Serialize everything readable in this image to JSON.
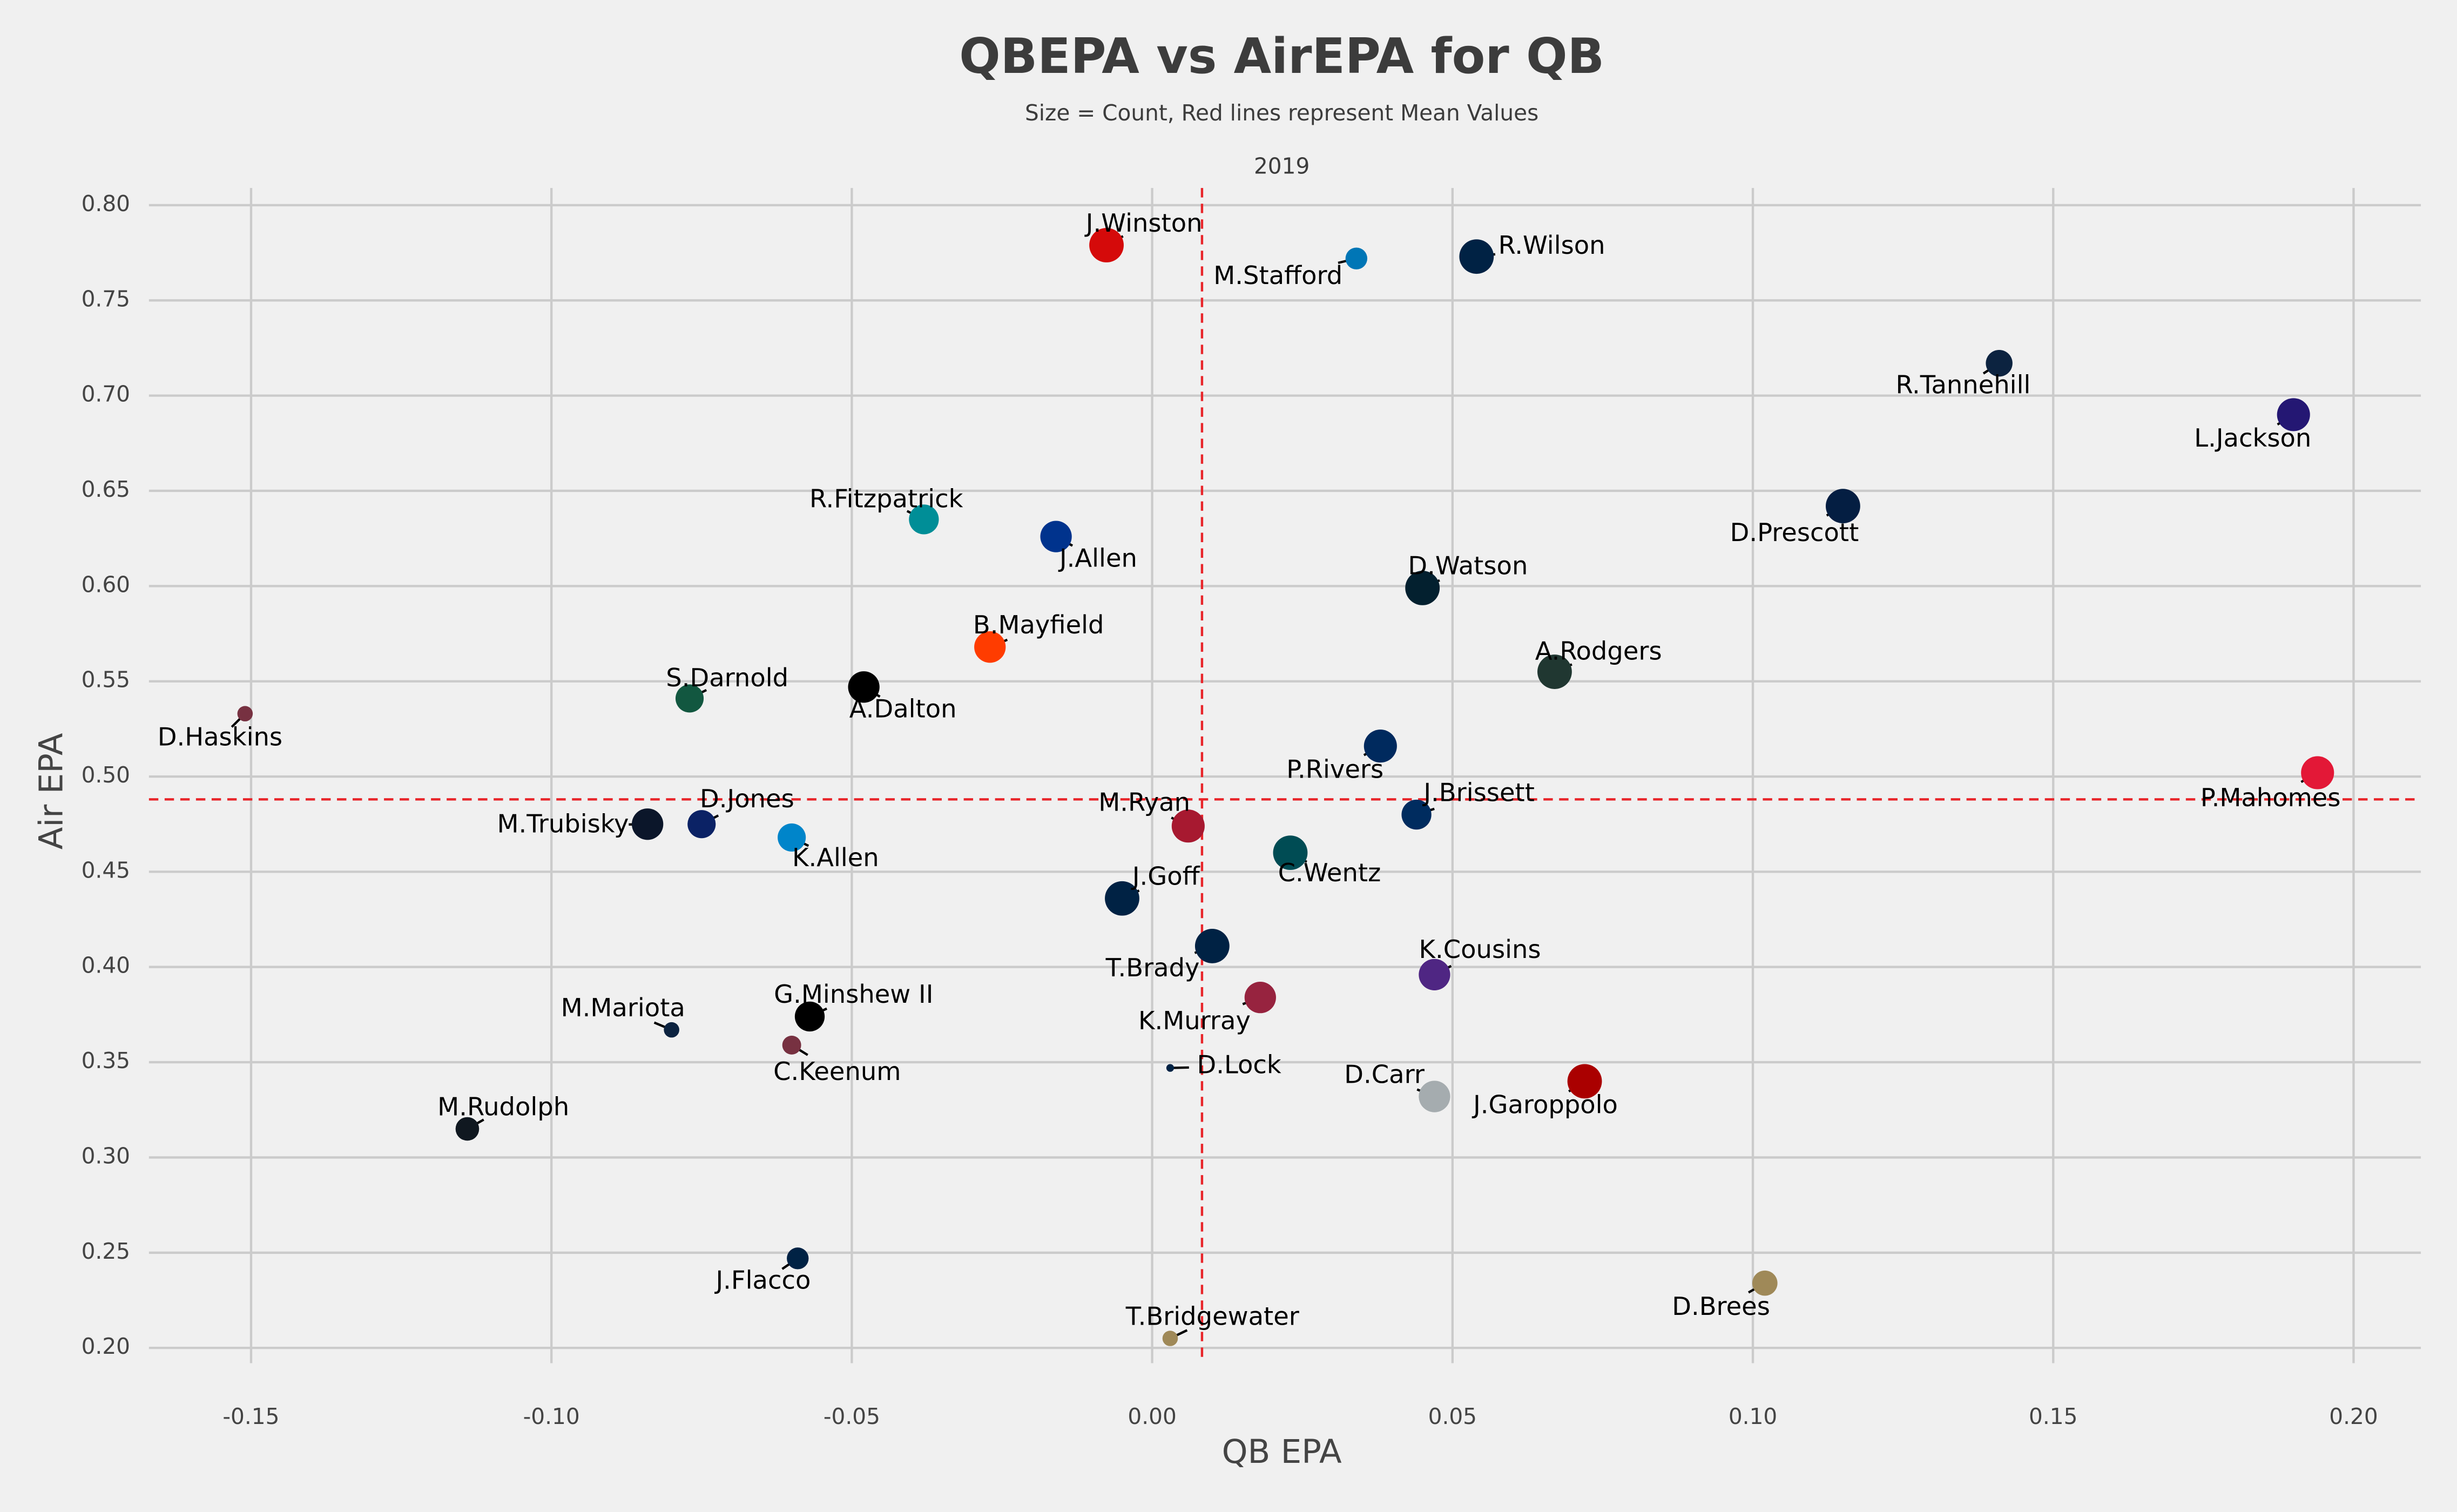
{
  "chart_data": {
    "type": "scatter",
    "title": "QBEPA vs AirEPA for QB",
    "subtitle": "Size = Count, Red lines represent Mean Values",
    "panel_label": "2019",
    "x_label": "QB EPA",
    "y_label": "Air EPA",
    "labels": [
      "J.Winston",
      "M.Stafford",
      "R.Wilson",
      "R.Tannehill",
      "L.Jackson",
      "D.Prescott",
      "R.Fitzpatrick",
      "J.Allen",
      "D.Watson",
      "B.Mayfield",
      "A.Rodgers",
      "S.Darnold",
      "A.Dalton",
      "D.Haskins",
      "P.Rivers",
      "P.Mahomes",
      "J.Brissett",
      "M.Ryan",
      "M.Trubisky",
      "D.Jones",
      "K.Allen",
      "C.Wentz",
      "J.Goff",
      "T.Brady",
      "K.Cousins",
      "K.Murray",
      "G.Minshew II",
      "M.Mariota",
      "C.Keenum",
      "D.Lock",
      "D.Carr",
      "J.Garoppolo",
      "M.Rudolph",
      "J.Flacco",
      "D.Brees",
      "T.Bridgewater"
    ],
    "x": [
      -0.0076,
      0.034,
      0.054,
      0.141,
      0.19,
      0.115,
      -0.038,
      -0.016,
      0.045,
      -0.027,
      0.067,
      -0.077,
      -0.048,
      -0.151,
      0.038,
      0.194,
      0.044,
      0.006,
      -0.084,
      -0.075,
      -0.06,
      0.023,
      -0.005,
      0.01,
      0.047,
      0.018,
      -0.057,
      -0.08,
      -0.06,
      0.003,
      0.047,
      0.072,
      -0.114,
      -0.059,
      0.102,
      0.003
    ],
    "y": [
      0.779,
      0.772,
      0.773,
      0.717,
      0.69,
      0.642,
      0.635,
      0.626,
      0.599,
      0.568,
      0.555,
      0.541,
      0.547,
      0.533,
      0.516,
      0.502,
      0.48,
      0.474,
      0.475,
      0.475,
      0.468,
      0.46,
      0.436,
      0.411,
      0.396,
      0.384,
      0.374,
      0.367,
      0.359,
      0.347,
      0.332,
      0.34,
      0.315,
      0.247,
      0.234,
      0.205
    ],
    "sizes": [
      600,
      240,
      600,
      360,
      550,
      600,
      450,
      500,
      600,
      500,
      600,
      400,
      500,
      120,
      550,
      550,
      450,
      550,
      500,
      400,
      400,
      600,
      600,
      600,
      500,
      500,
      450,
      120,
      180,
      30,
      500,
      600,
      280,
      240,
      320,
      120
    ],
    "colors": [
      "#d50a0a",
      "#0076b6",
      "#002244",
      "#0c2340",
      "#241773",
      "#041e42",
      "#008e97",
      "#00338d",
      "#03202f",
      "#ff3c00",
      "#203731",
      "#125740",
      "#000000",
      "#773141",
      "#002a5e",
      "#e31837",
      "#002c5f",
      "#a71930",
      "#0b162a",
      "#0b2265",
      "#0085ca",
      "#004c54",
      "#002244",
      "#002244",
      "#4f2683",
      "#97233f",
      "#000000",
      "#0c2340",
      "#773141",
      "#002244",
      "#a5acaf",
      "#aa0000",
      "#101820",
      "#002244",
      "#9f8958",
      "#9f8958"
    ],
    "mean_x": 0.0083,
    "mean_y": 0.488,
    "mean_line_color": "#e8252a",
    "xlim": [
      -0.167,
      0.2112
    ],
    "ylim": [
      0.192,
      0.809
    ],
    "xticks": [
      -0.15,
      {
        "value": -0.1,
        "label": "-0.10"
      },
      -0.05,
      {
        "value": 0,
        "label": "0.00"
      },
      0.05,
      {
        "value": 0.1,
        "label": "0.10"
      },
      0.15,
      {
        "value": 0.2,
        "label": "0.20"
      }
    ],
    "yticks": [
      {
        "value": 0.8,
        "label": "0.80"
      },
      0.75,
      {
        "value": 0.7,
        "label": "0.70"
      },
      0.65,
      {
        "value": 0.6,
        "label": "0.60"
      },
      0.55,
      {
        "value": 0.5,
        "label": "0.50"
      },
      0.45,
      {
        "value": 0.4,
        "label": "0.40"
      },
      0.35,
      {
        "value": 0.3,
        "label": "0.30"
      },
      0.25,
      {
        "value": 0.2,
        "label": "0.20"
      }
    ],
    "grid": true
  }
}
